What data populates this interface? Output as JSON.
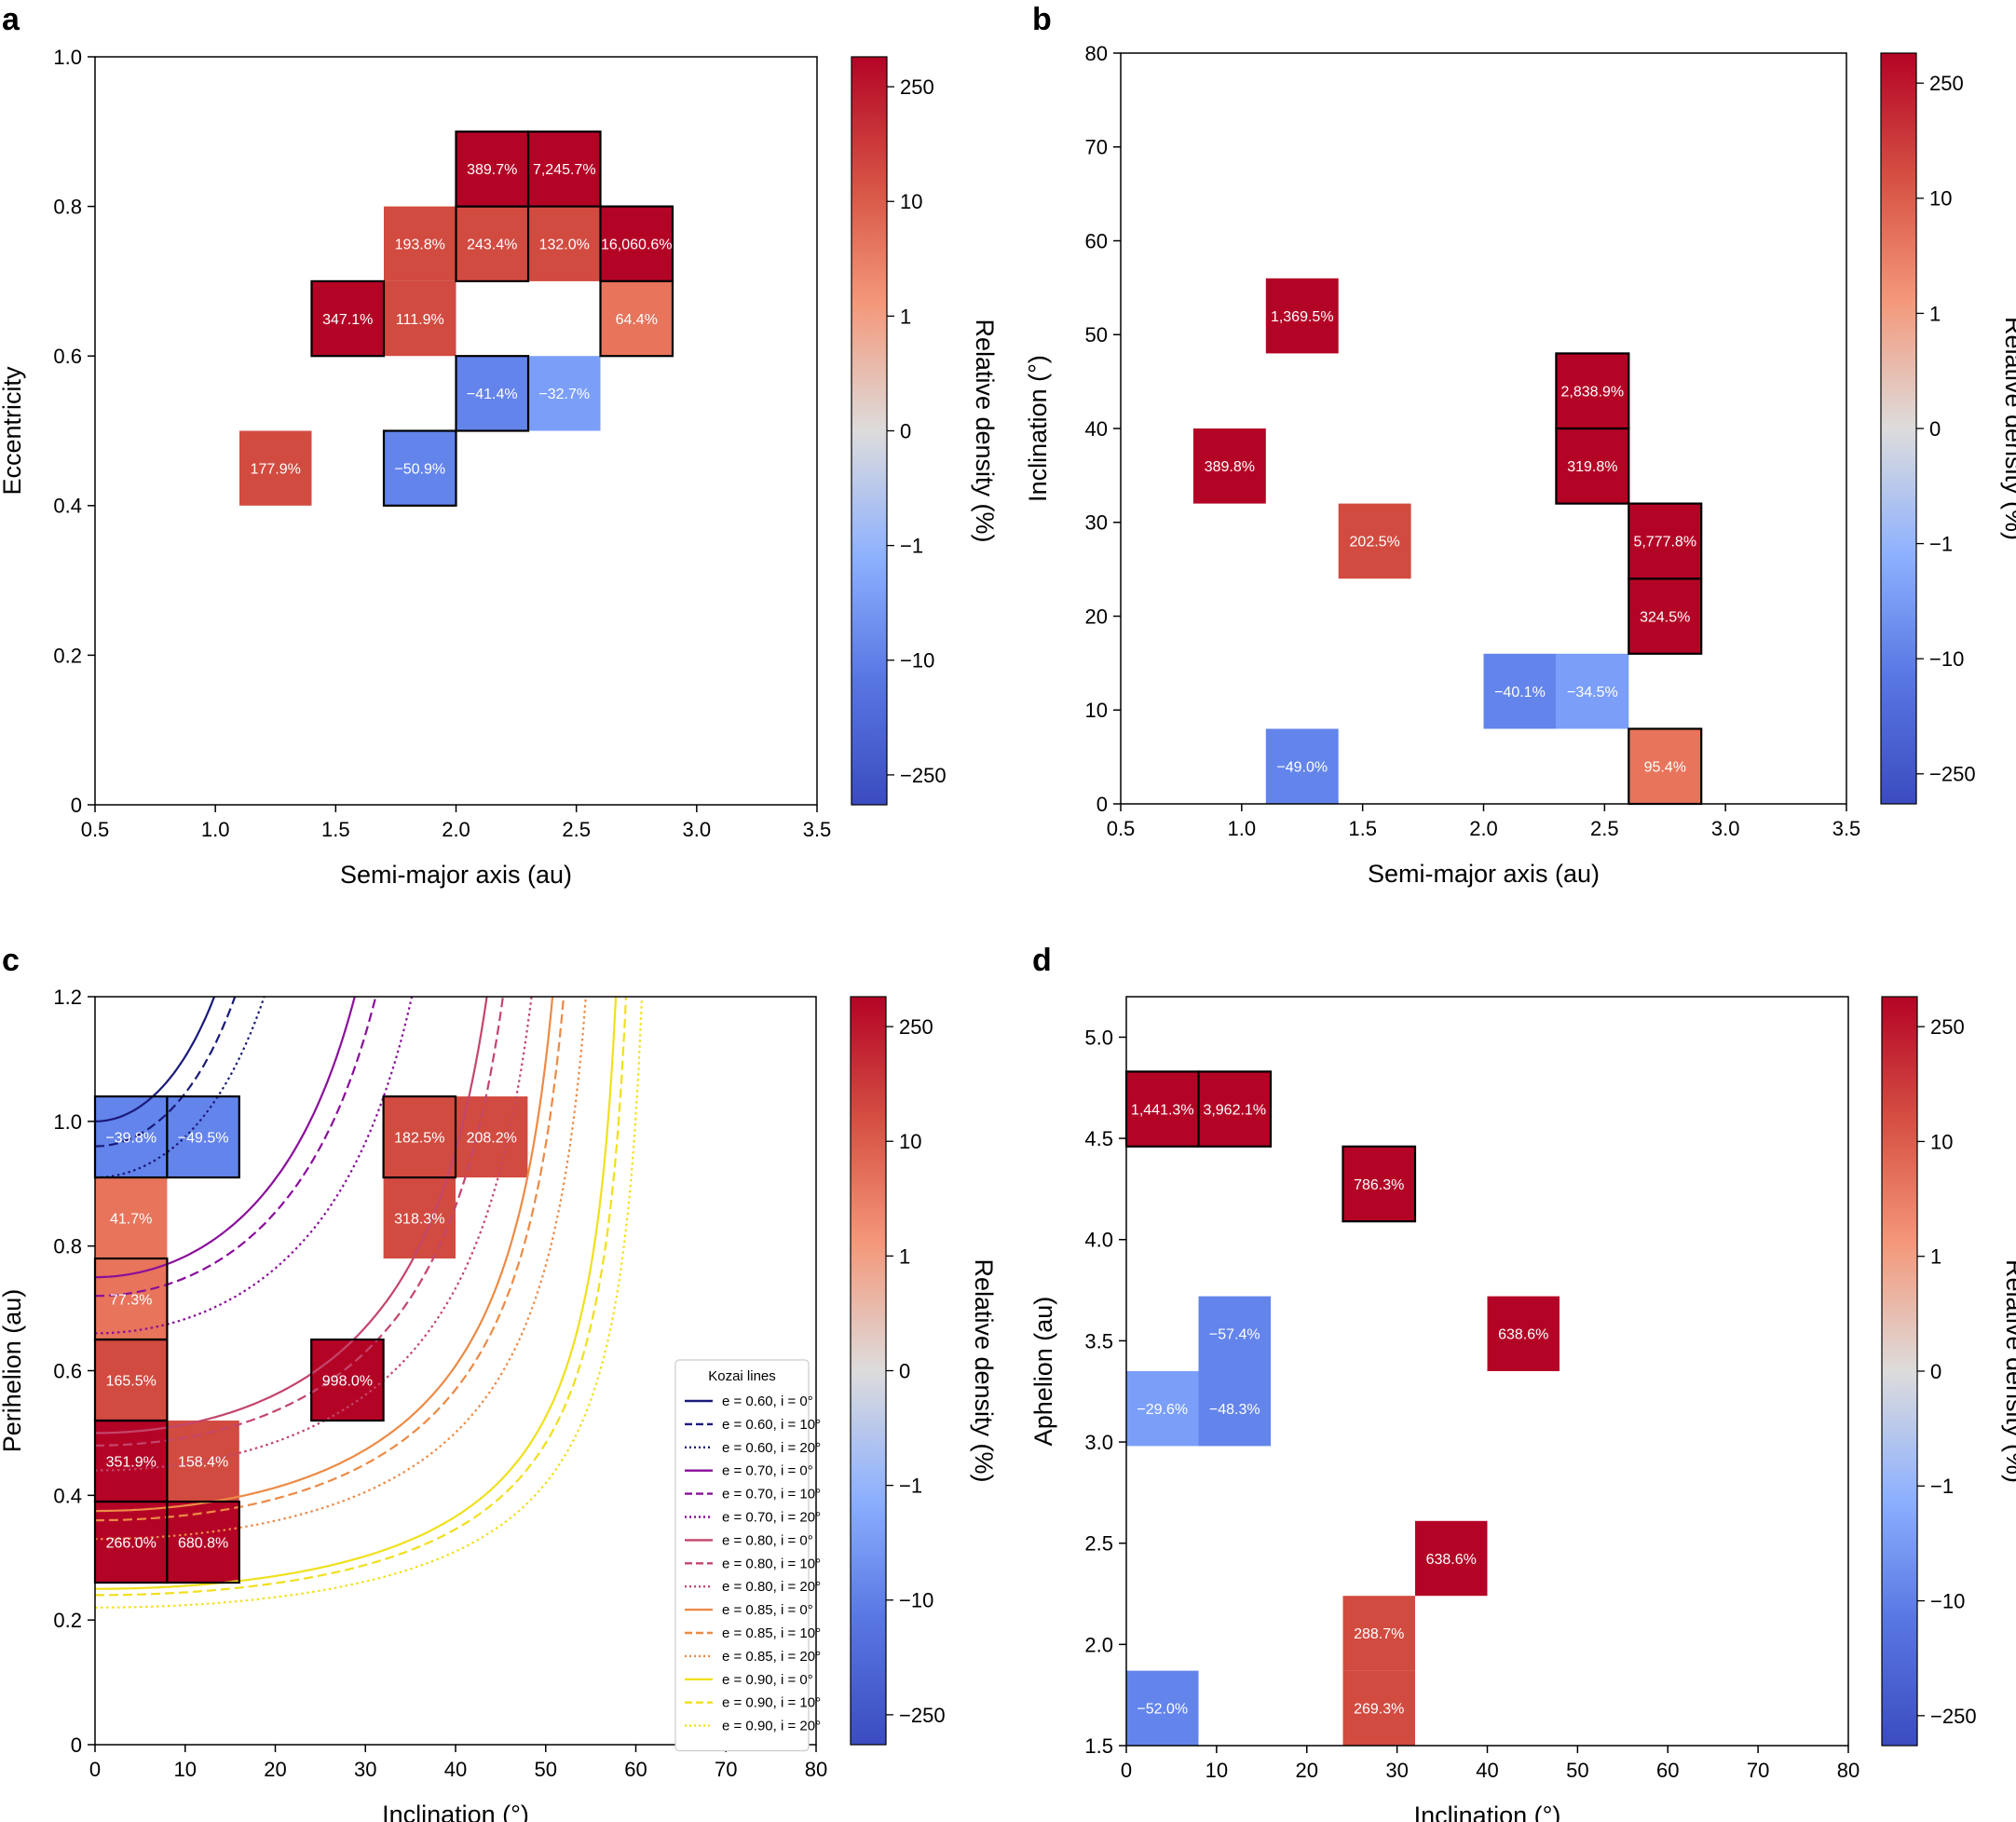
{
  "figure": {
    "colorbar_label": "Relative density (%)",
    "colorbar_ticks": [
      "250",
      "10",
      "1",
      "0",
      "−1",
      "−10",
      "−250"
    ],
    "colors": {
      "dark_red": "#b40426",
      "mid_red": "#d24b40",
      "light_red": "#e7745b",
      "mid_blue": "#6384eb",
      "light_blue": "#7b9ff9",
      "axis": "#000000"
    }
  },
  "chart_data": [
    {
      "id": "a",
      "type": "heatmap",
      "panel_label": "a",
      "xlabel": "Semi-major axis (au)",
      "ylabel": "Eccentricity",
      "xlim": [
        0.5,
        3.5
      ],
      "ylim": [
        0,
        1.0
      ],
      "xticks": [
        0.5,
        1.0,
        1.5,
        2.0,
        2.5,
        3.0,
        3.5
      ],
      "xtick_labels": [
        "0.5",
        "1.0",
        "1.5",
        "2.0",
        "2.5",
        "3.0",
        "3.5"
      ],
      "yticks": [
        0,
        0.2,
        0.4,
        0.6,
        0.8,
        1.0
      ],
      "ytick_labels": [
        "0",
        "0.2",
        "0.4",
        "0.6",
        "0.8",
        "1.0"
      ],
      "cells": [
        {
          "x0": 2.0,
          "x1": 2.3,
          "y0": 0.8,
          "y1": 0.9,
          "label": "389.7%",
          "color": "dark_red",
          "outline": true
        },
        {
          "x0": 2.3,
          "x1": 2.6,
          "y0": 0.8,
          "y1": 0.9,
          "label": "7,245.7%",
          "color": "dark_red",
          "outline": true
        },
        {
          "x0": 1.7,
          "x1": 2.0,
          "y0": 0.7,
          "y1": 0.8,
          "label": "193.8%",
          "color": "mid_red",
          "outline": false
        },
        {
          "x0": 2.0,
          "x1": 2.3,
          "y0": 0.7,
          "y1": 0.8,
          "label": "243.4%",
          "color": "mid_red",
          "outline": true
        },
        {
          "x0": 2.3,
          "x1": 2.6,
          "y0": 0.7,
          "y1": 0.8,
          "label": "132.0%",
          "color": "mid_red",
          "outline": false
        },
        {
          "x0": 2.6,
          "x1": 2.9,
          "y0": 0.7,
          "y1": 0.8,
          "label": "16,060.6%",
          "color": "dark_red",
          "outline": true
        },
        {
          "x0": 1.4,
          "x1": 1.7,
          "y0": 0.6,
          "y1": 0.7,
          "label": "347.1%",
          "color": "dark_red",
          "outline": true
        },
        {
          "x0": 1.7,
          "x1": 2.0,
          "y0": 0.6,
          "y1": 0.7,
          "label": "111.9%",
          "color": "mid_red",
          "outline": false
        },
        {
          "x0": 2.6,
          "x1": 2.9,
          "y0": 0.6,
          "y1": 0.7,
          "label": "64.4%",
          "color": "light_red",
          "outline": true
        },
        {
          "x0": 2.0,
          "x1": 2.3,
          "y0": 0.5,
          "y1": 0.6,
          "label": "−41.4%",
          "color": "mid_blue",
          "outline": true
        },
        {
          "x0": 2.3,
          "x1": 2.6,
          "y0": 0.5,
          "y1": 0.6,
          "label": "−32.7%",
          "color": "light_blue",
          "outline": false
        },
        {
          "x0": 1.1,
          "x1": 1.4,
          "y0": 0.4,
          "y1": 0.5,
          "label": "177.9%",
          "color": "mid_red",
          "outline": false
        },
        {
          "x0": 1.7,
          "x1": 2.0,
          "y0": 0.4,
          "y1": 0.5,
          "label": "−50.9%",
          "color": "mid_blue",
          "outline": true
        }
      ]
    },
    {
      "id": "b",
      "type": "heatmap",
      "panel_label": "b",
      "xlabel": "Semi-major axis (au)",
      "ylabel": "Inclination (°)",
      "xlim": [
        0.5,
        3.5
      ],
      "ylim": [
        0,
        80
      ],
      "xticks": [
        0.5,
        1.0,
        1.5,
        2.0,
        2.5,
        3.0,
        3.5
      ],
      "xtick_labels": [
        "0.5",
        "1.0",
        "1.5",
        "2.0",
        "2.5",
        "3.0",
        "3.5"
      ],
      "yticks": [
        0,
        10,
        20,
        30,
        40,
        50,
        60,
        70,
        80
      ],
      "ytick_labels": [
        "0",
        "10",
        "20",
        "30",
        "40",
        "50",
        "60",
        "70",
        "80"
      ],
      "cells": [
        {
          "x0": 1.1,
          "x1": 1.4,
          "y0": 48,
          "y1": 56,
          "label": "1,369.5%",
          "color": "dark_red",
          "outline": false
        },
        {
          "x0": 2.3,
          "x1": 2.6,
          "y0": 40,
          "y1": 48,
          "label": "2,838.9%",
          "color": "dark_red",
          "outline": true
        },
        {
          "x0": 0.8,
          "x1": 1.1,
          "y0": 32,
          "y1": 40,
          "label": "389.8%",
          "color": "dark_red",
          "outline": false
        },
        {
          "x0": 2.3,
          "x1": 2.6,
          "y0": 32,
          "y1": 40,
          "label": "319.8%",
          "color": "dark_red",
          "outline": true
        },
        {
          "x0": 1.4,
          "x1": 1.7,
          "y0": 24,
          "y1": 32,
          "label": "202.5%",
          "color": "mid_red",
          "outline": false
        },
        {
          "x0": 2.6,
          "x1": 2.9,
          "y0": 24,
          "y1": 32,
          "label": "5,777.8%",
          "color": "dark_red",
          "outline": true
        },
        {
          "x0": 2.6,
          "x1": 2.9,
          "y0": 16,
          "y1": 24,
          "label": "324.5%",
          "color": "dark_red",
          "outline": true
        },
        {
          "x0": 2.0,
          "x1": 2.3,
          "y0": 8,
          "y1": 16,
          "label": "−40.1%",
          "color": "mid_blue",
          "outline": false
        },
        {
          "x0": 2.3,
          "x1": 2.6,
          "y0": 8,
          "y1": 16,
          "label": "−34.5%",
          "color": "light_blue",
          "outline": false
        },
        {
          "x0": 1.1,
          "x1": 1.4,
          "y0": 0,
          "y1": 8,
          "label": "−49.0%",
          "color": "mid_blue",
          "outline": false
        },
        {
          "x0": 2.6,
          "x1": 2.9,
          "y0": 0,
          "y1": 8,
          "label": "95.4%",
          "color": "light_red",
          "outline": true
        }
      ]
    },
    {
      "id": "c",
      "type": "heatmap",
      "panel_label": "c",
      "xlabel": "Inclination (°)",
      "ylabel": "Perihelion (au)",
      "xlim": [
        0,
        80
      ],
      "ylim": [
        0,
        1.2
      ],
      "xticks": [
        0,
        10,
        20,
        30,
        40,
        50,
        60,
        70,
        80
      ],
      "xtick_labels": [
        "0",
        "10",
        "20",
        "30",
        "40",
        "50",
        "60",
        "70",
        "80"
      ],
      "yticks": [
        0,
        0.2,
        0.4,
        0.6,
        0.8,
        1.0,
        1.2
      ],
      "ytick_labels": [
        "0",
        "0.2",
        "0.4",
        "0.6",
        "0.8",
        "1.0",
        "1.2"
      ],
      "cells": [
        {
          "x0": 0,
          "x1": 8,
          "y0": 0.91,
          "y1": 1.04,
          "label": "−39.8%",
          "color": "mid_blue",
          "outline": true
        },
        {
          "x0": 8,
          "x1": 16,
          "y0": 0.91,
          "y1": 1.04,
          "label": "−49.5%",
          "color": "mid_blue",
          "outline": true
        },
        {
          "x0": 32,
          "x1": 40,
          "y0": 0.91,
          "y1": 1.04,
          "label": "182.5%",
          "color": "mid_red",
          "outline": true
        },
        {
          "x0": 40,
          "x1": 48,
          "y0": 0.91,
          "y1": 1.04,
          "label": "208.2%",
          "color": "mid_red",
          "outline": false
        },
        {
          "x0": 0,
          "x1": 8,
          "y0": 0.78,
          "y1": 0.91,
          "label": "41.7%",
          "color": "light_red",
          "outline": false
        },
        {
          "x0": 32,
          "x1": 40,
          "y0": 0.78,
          "y1": 0.91,
          "label": "318.3%",
          "color": "mid_red",
          "outline": false
        },
        {
          "x0": 0,
          "x1": 8,
          "y0": 0.65,
          "y1": 0.78,
          "label": "77.3%",
          "color": "light_red",
          "outline": true
        },
        {
          "x0": 0,
          "x1": 8,
          "y0": 0.52,
          "y1": 0.65,
          "label": "165.5%",
          "color": "mid_red",
          "outline": true
        },
        {
          "x0": 24,
          "x1": 32,
          "y0": 0.52,
          "y1": 0.65,
          "label": "998.0%",
          "color": "dark_red",
          "outline": true
        },
        {
          "x0": 0,
          "x1": 8,
          "y0": 0.39,
          "y1": 0.52,
          "label": "351.9%",
          "color": "dark_red",
          "outline": true
        },
        {
          "x0": 8,
          "x1": 16,
          "y0": 0.39,
          "y1": 0.52,
          "label": "158.4%",
          "color": "mid_red",
          "outline": false
        },
        {
          "x0": 0,
          "x1": 8,
          "y0": 0.26,
          "y1": 0.39,
          "label": "266.0%",
          "color": "dark_red",
          "outline": true
        },
        {
          "x0": 8,
          "x1": 16,
          "y0": 0.26,
          "y1": 0.39,
          "label": "680.8%",
          "color": "dark_red",
          "outline": true
        }
      ],
      "legend": {
        "title": "Kozai lines",
        "placement": "lower-right",
        "entries": [
          {
            "text": "e = 0.60, i = 0°",
            "color": "#1a1a7a",
            "dash": "solid"
          },
          {
            "text": "e = 0.60, i = 10°",
            "color": "#1a1a7a",
            "dash": "dashed"
          },
          {
            "text": "e = 0.60, i = 20°",
            "color": "#1a1a7a",
            "dash": "dotted"
          },
          {
            "text": "e = 0.70, i = 0°",
            "color": "#8a0e9b",
            "dash": "solid"
          },
          {
            "text": "e = 0.70, i = 10°",
            "color": "#8a0e9b",
            "dash": "dashed"
          },
          {
            "text": "e = 0.70, i = 20°",
            "color": "#8a0e9b",
            "dash": "dotted"
          },
          {
            "text": "e = 0.80, i = 0°",
            "color": "#c4456b",
            "dash": "solid"
          },
          {
            "text": "e = 0.80, i = 10°",
            "color": "#c4456b",
            "dash": "dashed"
          },
          {
            "text": "e = 0.80, i = 20°",
            "color": "#c4456b",
            "dash": "dotted"
          },
          {
            "text": "e = 0.85, i = 0°",
            "color": "#ec8a45",
            "dash": "solid"
          },
          {
            "text": "e = 0.85, i = 10°",
            "color": "#ec8a45",
            "dash": "dashed"
          },
          {
            "text": "e = 0.85, i = 20°",
            "color": "#ec8a45",
            "dash": "dotted"
          },
          {
            "text": "e = 0.90, i = 0°",
            "color": "#f0e01c",
            "dash": "solid"
          },
          {
            "text": "e = 0.90, i = 10°",
            "color": "#f0e01c",
            "dash": "dashed"
          },
          {
            "text": "e = 0.90, i = 20°",
            "color": "#f0e01c",
            "dash": "dotted"
          }
        ]
      },
      "kozai_lines": [
        {
          "e": 0.6,
          "i": 0,
          "q0": 1.0,
          "asym": 27
        },
        {
          "e": 0.6,
          "i": 10,
          "q0": 0.96,
          "asym": 29
        },
        {
          "e": 0.6,
          "i": 20,
          "q0": 0.91,
          "asym": 32
        },
        {
          "e": 0.7,
          "i": 0,
          "q0": 0.75,
          "asym": 40
        },
        {
          "e": 0.7,
          "i": 10,
          "q0": 0.72,
          "asym": 42
        },
        {
          "e": 0.7,
          "i": 20,
          "q0": 0.66,
          "asym": 45
        },
        {
          "e": 0.8,
          "i": 0,
          "q0": 0.5,
          "asym": 50
        },
        {
          "e": 0.8,
          "i": 10,
          "q0": 0.48,
          "asym": 51.5
        },
        {
          "e": 0.8,
          "i": 20,
          "q0": 0.44,
          "asym": 54
        },
        {
          "e": 0.85,
          "i": 0,
          "q0": 0.375,
          "asym": 55
        },
        {
          "e": 0.85,
          "i": 10,
          "q0": 0.36,
          "asym": 56
        },
        {
          "e": 0.85,
          "i": 20,
          "q0": 0.33,
          "asym": 58
        },
        {
          "e": 0.9,
          "i": 0,
          "q0": 0.25,
          "asym": 60
        },
        {
          "e": 0.9,
          "i": 10,
          "q0": 0.24,
          "asym": 61
        },
        {
          "e": 0.9,
          "i": 20,
          "q0": 0.22,
          "asym": 62.5
        }
      ]
    },
    {
      "id": "d",
      "type": "heatmap",
      "panel_label": "d",
      "xlabel": "Inclination (°)",
      "ylabel": "Aphelion (au)",
      "xlim": [
        0,
        80
      ],
      "ylim": [
        1.5,
        5.2
      ],
      "xticks": [
        0,
        10,
        20,
        30,
        40,
        50,
        60,
        70,
        80
      ],
      "xtick_labels": [
        "0",
        "10",
        "20",
        "30",
        "40",
        "50",
        "60",
        "70",
        "80"
      ],
      "yticks": [
        1.5,
        2.0,
        2.5,
        3.0,
        3.5,
        4.0,
        4.5,
        5.0
      ],
      "ytick_labels": [
        "1.5",
        "2.0",
        "2.5",
        "3.0",
        "3.5",
        "4.0",
        "4.5",
        "5.0"
      ],
      "cells": [
        {
          "x0": 0,
          "x1": 8,
          "y0": 4.46,
          "y1": 4.83,
          "label": "1,441.3%",
          "color": "dark_red",
          "outline": true
        },
        {
          "x0": 8,
          "x1": 16,
          "y0": 4.46,
          "y1": 4.83,
          "label": "3,962.1%",
          "color": "dark_red",
          "outline": true
        },
        {
          "x0": 24,
          "x1": 32,
          "y0": 4.09,
          "y1": 4.46,
          "label": "786.3%",
          "color": "dark_red",
          "outline": true
        },
        {
          "x0": 8,
          "x1": 16,
          "y0": 3.35,
          "y1": 3.72,
          "label": "−57.4%",
          "color": "mid_blue",
          "outline": false
        },
        {
          "x0": 40,
          "x1": 48,
          "y0": 3.35,
          "y1": 3.72,
          "label": "638.6%",
          "color": "dark_red",
          "outline": false
        },
        {
          "x0": 0,
          "x1": 8,
          "y0": 2.98,
          "y1": 3.35,
          "label": "−29.6%",
          "color": "light_blue",
          "outline": false
        },
        {
          "x0": 8,
          "x1": 16,
          "y0": 2.98,
          "y1": 3.35,
          "label": "−48.3%",
          "color": "mid_blue",
          "outline": false
        },
        {
          "x0": 32,
          "x1": 40,
          "y0": 2.24,
          "y1": 2.61,
          "label": "638.6%",
          "color": "dark_red",
          "outline": false
        },
        {
          "x0": 24,
          "x1": 32,
          "y0": 1.87,
          "y1": 2.24,
          "label": "288.7%",
          "color": "mid_red",
          "outline": false
        },
        {
          "x0": 24,
          "x1": 32,
          "y0": 1.5,
          "y1": 1.87,
          "label": "269.3%",
          "color": "mid_red",
          "outline": false
        },
        {
          "x0": 0,
          "x1": 8,
          "y0": 1.5,
          "y1": 1.87,
          "label": "−52.0%",
          "color": "mid_blue",
          "outline": false
        }
      ]
    }
  ]
}
